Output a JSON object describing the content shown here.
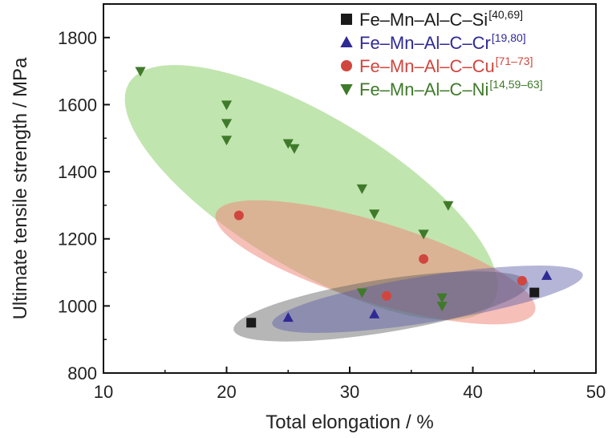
{
  "chart_data": {
    "type": "scatter",
    "xlabel": "Total elongation / %",
    "ylabel": "Ultimate tensile strength / MPa",
    "xlim": [
      10,
      50
    ],
    "ylim": [
      800,
      1900
    ],
    "x_ticks": [
      "10",
      "20",
      "30",
      "40",
      "50"
    ],
    "y_ticks": [
      "800",
      "1000",
      "1200",
      "1400",
      "1600",
      "1800"
    ],
    "legend_placement": "top-right",
    "series": [
      {
        "name": "Fe–Mn–Al–C–Si",
        "ref": "[40,69]",
        "marker": "square",
        "color": "#1a1a1a",
        "region_color": "#6b6b6b",
        "points": [
          [
            22,
            950
          ],
          [
            45,
            1040
          ]
        ]
      },
      {
        "name": "Fe–Mn–Al–C–Cr",
        "ref": "[19,80]",
        "marker": "triangle-up",
        "color": "#2f2a94",
        "region_color": "#5a5aa8",
        "points": [
          [
            25,
            965
          ],
          [
            32,
            975
          ],
          [
            46,
            1090
          ]
        ]
      },
      {
        "name": "Fe–Mn–Al–C–Cu",
        "ref": "[71–73]",
        "marker": "circle",
        "color": "#d0463e",
        "region_color": "#ee8a7e",
        "points": [
          [
            21,
            1270
          ],
          [
            33,
            1030
          ],
          [
            36,
            1140
          ],
          [
            44,
            1075
          ]
        ]
      },
      {
        "name": "Fe–Mn–Al–C–Ni",
        "ref": "[14,59–63]",
        "marker": "triangle-down",
        "color": "#3f7a2a",
        "region_color": "#8ecf6e",
        "points": [
          [
            13,
            1700
          ],
          [
            20,
            1600
          ],
          [
            20,
            1545
          ],
          [
            20,
            1495
          ],
          [
            25,
            1485
          ],
          [
            25.5,
            1470
          ],
          [
            31,
            1350
          ],
          [
            32,
            1275
          ],
          [
            38,
            1300
          ],
          [
            36,
            1215
          ],
          [
            31,
            1040
          ],
          [
            37.5,
            1025
          ],
          [
            37.5,
            1000
          ]
        ]
      }
    ]
  }
}
